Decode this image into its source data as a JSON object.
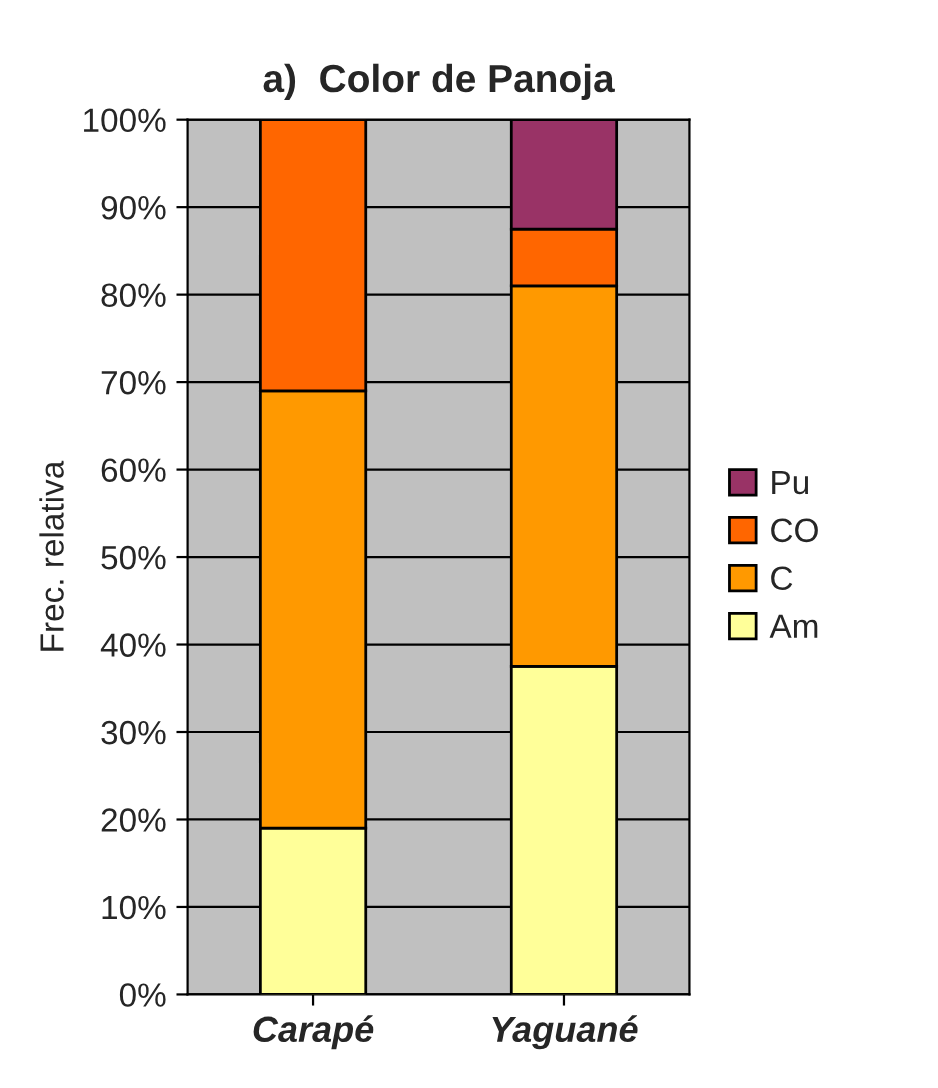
{
  "chart_data": {
    "type": "bar",
    "title": "a)  Color de Panoja",
    "ylabel": "Frec. relativa",
    "categories": [
      "Carapé",
      "Yaguané"
    ],
    "stacked": true,
    "series": [
      {
        "name": "Am",
        "color": "#ffff99",
        "values": [
          19,
          37.5
        ]
      },
      {
        "name": "C",
        "color": "#ff9900",
        "values": [
          50,
          43.5
        ]
      },
      {
        "name": "CO",
        "color": "#ff6600",
        "values": [
          31,
          6.5
        ]
      },
      {
        "name": "Pu",
        "color": "#993366",
        "values": [
          null,
          12.5
        ]
      }
    ],
    "ylim": [
      0,
      100
    ],
    "yticks": [
      {
        "value": 0,
        "label": "0%"
      },
      {
        "value": 10,
        "label": "10%"
      },
      {
        "value": 20,
        "label": "20%"
      },
      {
        "value": 30,
        "label": "30%"
      },
      {
        "value": 40,
        "label": "40%"
      },
      {
        "value": 50,
        "label": "50%"
      },
      {
        "value": 60,
        "label": "60%"
      },
      {
        "value": 70,
        "label": "70%"
      },
      {
        "value": 80,
        "label": "80%"
      },
      {
        "value": 90,
        "label": "90%"
      },
      {
        "value": 100,
        "label": "100%"
      }
    ],
    "grid": "y",
    "legend": "right"
  }
}
